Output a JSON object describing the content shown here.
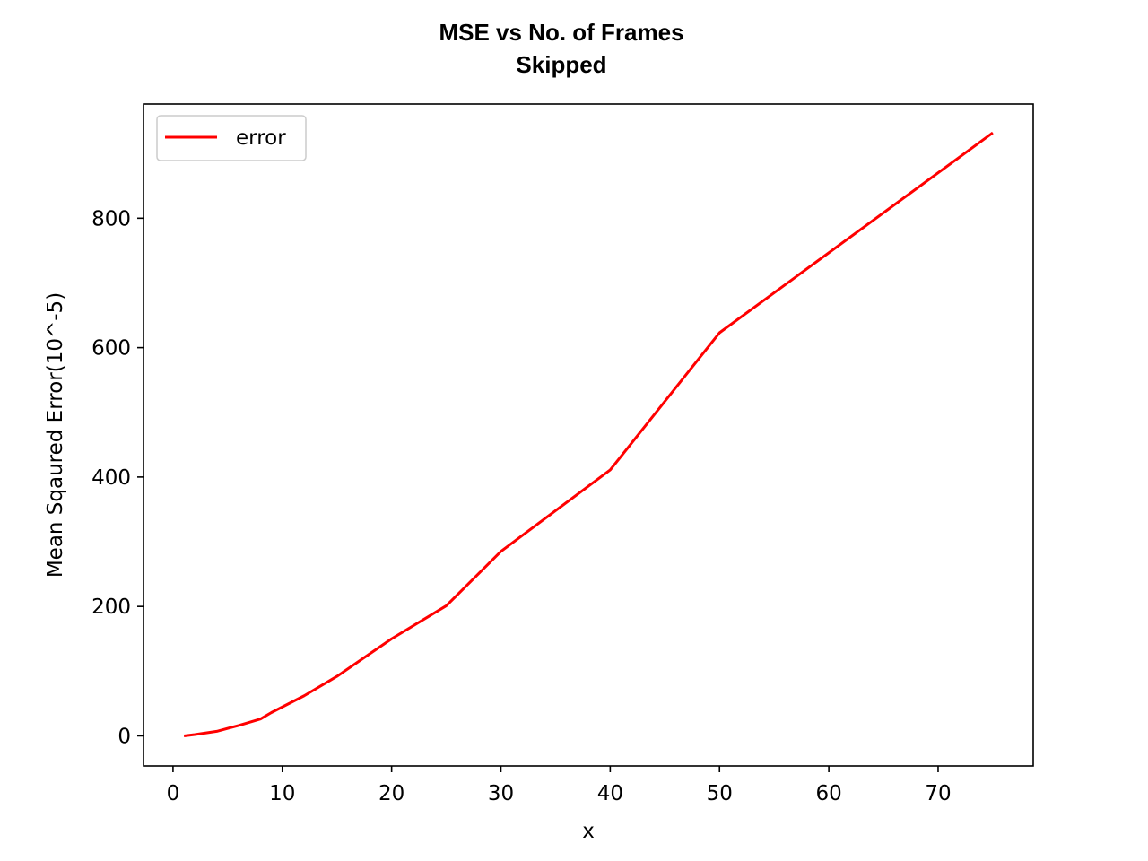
{
  "chart_data": {
    "type": "line",
    "title_lines": [
      "MSE vs No. of Frames",
      "Skipped"
    ],
    "xlabel": "x",
    "ylabel": "Mean Sqaured Error(10^-5)",
    "xlim": [
      -2.7,
      78.7
    ],
    "ylim": [
      -46.5,
      976.5
    ],
    "xticks": [
      0,
      10,
      20,
      30,
      40,
      50,
      60,
      70
    ],
    "yticks": [
      0,
      200,
      400,
      600,
      800
    ],
    "grid": false,
    "legend_position": "upper-left",
    "series": [
      {
        "name": "error",
        "color": "#ff0000",
        "x": [
          1,
          2,
          4,
          6,
          8,
          9,
          12,
          15,
          20,
          25,
          30,
          40,
          50,
          75
        ],
        "y": [
          0,
          2,
          7,
          16,
          26,
          36,
          62,
          92,
          150,
          201,
          285,
          411,
          623,
          932
        ]
      }
    ]
  }
}
